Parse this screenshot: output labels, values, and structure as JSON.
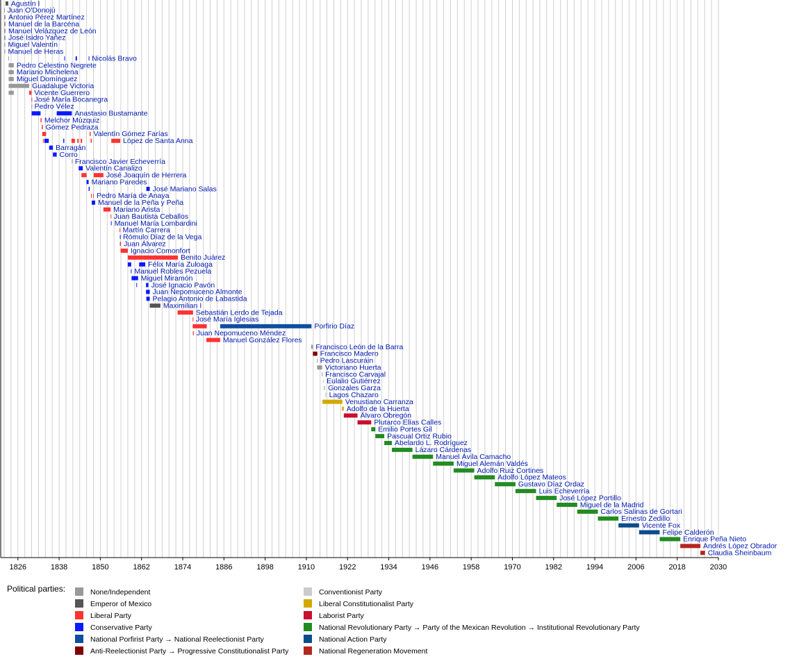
{
  "chart_data": {
    "type": "timeline",
    "xlim": [
      1822,
      2030
    ],
    "xticks": [
      1826,
      1838,
      1850,
      1862,
      1874,
      1886,
      1898,
      1910,
      1922,
      1934,
      1946,
      1958,
      1970,
      1982,
      1994,
      2006,
      2018,
      2030
    ],
    "grid_x": [
      1822,
      1824,
      1826,
      1828,
      1830,
      1832,
      1834,
      1836,
      1838,
      1840,
      1842,
      1844,
      1846,
      1848,
      1850,
      1852,
      1854,
      1856,
      1858,
      1860,
      1862,
      1864,
      1866,
      1868,
      1870,
      1872,
      1874,
      1876,
      1878,
      1880,
      1882,
      1884,
      1886,
      1888,
      1890,
      1892,
      1894,
      1896,
      1898,
      1900,
      1902,
      1904,
      1906,
      1908,
      1910,
      1912,
      1914,
      1916,
      1918,
      1920,
      1922,
      1924,
      1926,
      1928,
      1930,
      1932,
      1934,
      1936,
      1938,
      1940,
      1942,
      1944,
      1946,
      1948,
      1950,
      1952,
      1954,
      1956,
      1958,
      1960,
      1962,
      1964,
      1966,
      1968,
      1970,
      1972,
      1974,
      1976,
      1978,
      1980,
      1982,
      1984,
      1986,
      1988,
      1990,
      1992,
      1994,
      1996,
      1998,
      2000,
      2002,
      2004,
      2006,
      2008,
      2010,
      2012,
      2014,
      2016,
      2018,
      2020,
      2022,
      2024,
      2026,
      2028,
      2030
    ],
    "legend_title": "Political parties:",
    "parties": [
      {
        "name": "None/Independent",
        "color": "#999999"
      },
      {
        "name": "Emperor of Mexico",
        "color": "#555555"
      },
      {
        "name": "Liberal Party",
        "color": "#ff3333"
      },
      {
        "name": "Conservative Party",
        "color": "#0a1aff"
      },
      {
        "name": "National Porfirist Party → National Reelectionist Party",
        "color": "#0d4ea0"
      },
      {
        "name": "Anti-Reelectionist Party → Progressive Constitutionalist Party",
        "color": "#800000"
      },
      {
        "name": "Conventionist Party",
        "color": "#cccccc"
      },
      {
        "name": "Liberal Constitutionalist Party",
        "color": "#d4a800"
      },
      {
        "name": "Laborist Party",
        "color": "#c8102e"
      },
      {
        "name": "National Revolutionary Party → Party of the Mexican Revolution → Institutional Revolutionary Party",
        "color": "#228b22"
      },
      {
        "name": "National Action Party",
        "color": "#0b4c8c"
      },
      {
        "name": "National Regeneration Movement",
        "color": "#b5261e"
      }
    ],
    "rows": [
      {
        "name": "Agustín I",
        "terms": [
          [
            1822.4,
            1823.2,
            1
          ]
        ]
      },
      {
        "name": "Juan O'Donojú",
        "terms": [
          [
            1822.0,
            1822.1,
            0
          ]
        ]
      },
      {
        "name": "Antonio Pérez Martínez",
        "terms": [
          [
            1822.0,
            1822.4,
            0
          ]
        ]
      },
      {
        "name": "Manuel de la Barcéna",
        "terms": [
          [
            1822.0,
            1822.4,
            0
          ]
        ]
      },
      {
        "name": "Manuel Velázquez de León",
        "terms": [
          [
            1822.0,
            1822.4,
            0
          ]
        ]
      },
      {
        "name": "José Isidro Yañez",
        "terms": [
          [
            1822.0,
            1822.4,
            0
          ]
        ]
      },
      {
        "name": "Miguel Valentín",
        "terms": [
          [
            1822.1,
            1822.3,
            0
          ]
        ]
      },
      {
        "name": "Manuel de Heras",
        "terms": [
          [
            1822.1,
            1822.3,
            0
          ]
        ]
      },
      {
        "name": "Nicolás Bravo",
        "terms": [
          [
            1823.2,
            1823.4,
            0
          ],
          [
            1839.5,
            1839.6,
            3
          ],
          [
            1842.8,
            1843.2,
            3
          ],
          [
            1846.6,
            1846.7,
            3
          ]
        ]
      },
      {
        "name": "Pedro Celestino Negrete",
        "terms": [
          [
            1823.3,
            1824.8,
            0
          ]
        ]
      },
      {
        "name": "Mariano Michelena",
        "terms": [
          [
            1823.3,
            1824.8,
            0
          ]
        ]
      },
      {
        "name": "Miguel Domínguez",
        "terms": [
          [
            1823.3,
            1824.8,
            0
          ]
        ]
      },
      {
        "name": "Guadalupe Victoria",
        "terms": [
          [
            1823.3,
            1829.3,
            0
          ]
        ]
      },
      {
        "name": "Vicente Guerrero",
        "terms": [
          [
            1823.3,
            1824.8,
            0
          ],
          [
            1829.3,
            1829.95,
            2
          ]
        ]
      },
      {
        "name": "José María Bocanegra",
        "terms": [
          [
            1829.95,
            1830.0,
            2
          ]
        ]
      },
      {
        "name": "Pedro Vélez",
        "terms": [
          [
            1829.96,
            1830.0,
            0
          ]
        ]
      },
      {
        "name": "Anastasio Bustamante",
        "terms": [
          [
            1830.0,
            1832.6,
            3
          ],
          [
            1837.3,
            1841.7,
            3
          ]
        ]
      },
      {
        "name": "Melchor Múzquiz",
        "terms": [
          [
            1832.6,
            1832.9,
            2
          ]
        ]
      },
      {
        "name": "Gómez Pedraza",
        "terms": [
          [
            1832.95,
            1833.25,
            2
          ]
        ]
      },
      {
        "name": "Valentín Gómez Farías",
        "terms": [
          [
            1833.1,
            1834.2,
            2
          ],
          [
            1846.9,
            1847.2,
            2
          ]
        ]
      },
      {
        "name": "López de Santa Anna",
        "terms": [
          [
            1833.3,
            1833.5,
            2
          ],
          [
            1833.7,
            1835.0,
            3
          ],
          [
            1839.2,
            1839.5,
            3
          ],
          [
            1841.6,
            1842.6,
            2
          ],
          [
            1843.3,
            1843.7,
            2
          ],
          [
            1844.3,
            1844.7,
            2
          ],
          [
            1847.2,
            1847.5,
            2
          ],
          [
            1853.2,
            1855.8,
            2
          ]
        ]
      },
      {
        "name": "Barragán",
        "terms": [
          [
            1835.1,
            1836.2,
            3
          ]
        ]
      },
      {
        "name": "Corro",
        "terms": [
          [
            1836.2,
            1837.3,
            3
          ]
        ]
      },
      {
        "name": "Francisco Javier Echeverría",
        "terms": [
          [
            1841.7,
            1841.8,
            0
          ]
        ]
      },
      {
        "name": "Valentín Canalizo",
        "terms": [
          [
            1843.7,
            1844.9,
            3
          ]
        ]
      },
      {
        "name": "José Joaquín de Herrera",
        "terms": [
          [
            1844.5,
            1846.0,
            2
          ],
          [
            1848.1,
            1850.9,
            2
          ]
        ]
      },
      {
        "name": "Mariano Paredes",
        "terms": [
          [
            1846.0,
            1846.6,
            3
          ]
        ]
      },
      {
        "name": "José Mariano Salas",
        "terms": [
          [
            1846.6,
            1846.9,
            3
          ],
          [
            1863.4,
            1864.4,
            3
          ]
        ]
      },
      {
        "name": "Pedro María de Anaya",
        "terms": [
          [
            1847.3,
            1847.5,
            2
          ],
          [
            1847.9,
            1848.1,
            2
          ]
        ]
      },
      {
        "name": "Manuel de la Peña y Peña",
        "terms": [
          [
            1847.5,
            1848.5,
            3
          ]
        ]
      },
      {
        "name": "Mariano Arista",
        "terms": [
          [
            1850.9,
            1853.0,
            2
          ]
        ]
      },
      {
        "name": "Juan Bautista Ceballos",
        "terms": [
          [
            1853.0,
            1853.1,
            2
          ]
        ]
      },
      {
        "name": "Manuel María Lombardini",
        "terms": [
          [
            1853.1,
            1853.3,
            3
          ]
        ]
      },
      {
        "name": "Martín Carrera",
        "terms": [
          [
            1855.6,
            1855.7,
            2
          ]
        ]
      },
      {
        "name": "Rómulo Díaz de la Vega",
        "terms": [
          [
            1855.7,
            1855.8,
            3
          ]
        ]
      },
      {
        "name": "Juan Álvarez",
        "terms": [
          [
            1855.7,
            1856.0,
            2
          ]
        ]
      },
      {
        "name": "Ignacio Comonfort",
        "terms": [
          [
            1855.9,
            1858.0,
            2
          ]
        ]
      },
      {
        "name": "Benito Juárez",
        "terms": [
          [
            1858.0,
            1872.6,
            2
          ]
        ]
      },
      {
        "name": "Félix María Zuloaga",
        "terms": [
          [
            1858.0,
            1859.0,
            3
          ],
          [
            1861.3,
            1863.1,
            3
          ]
        ]
      },
      {
        "name": "Manuel Robles Pezuela",
        "terms": [
          [
            1858.9,
            1859.1,
            3
          ]
        ]
      },
      {
        "name": "Miguel Miramón",
        "terms": [
          [
            1859.1,
            1861.0,
            3
          ]
        ]
      },
      {
        "name": "José Ignacio Pavón",
        "terms": [
          [
            1860.5,
            1860.7,
            3
          ],
          [
            1863.3,
            1864.0,
            3
          ]
        ]
      },
      {
        "name": "Juan Nepomuceno Almonte",
        "terms": [
          [
            1863.3,
            1864.4,
            3
          ]
        ]
      },
      {
        "name": "Pelagio Antonio de Labastida",
        "terms": [
          [
            1863.4,
            1864.4,
            3
          ]
        ]
      },
      {
        "name": "Maximilian I",
        "terms": [
          [
            1864.4,
            1867.5,
            1
          ]
        ]
      },
      {
        "name": "Sebastián Lerdo de Tejada",
        "terms": [
          [
            1872.5,
            1877.0,
            2
          ]
        ]
      },
      {
        "name": "José María Iglesias",
        "terms": [
          [
            1876.9,
            1877.0,
            2
          ]
        ]
      },
      {
        "name": "Porfirio Díaz",
        "terms": [
          [
            1876.9,
            1881.0,
            2
          ],
          [
            1884.9,
            1911.5,
            4
          ]
        ]
      },
      {
        "name": "Juan Nepomuceno Méndez",
        "terms": [
          [
            1876.95,
            1877.2,
            2
          ]
        ]
      },
      {
        "name": "Manuel González Flores",
        "terms": [
          [
            1880.9,
            1884.9,
            2
          ]
        ]
      },
      {
        "name": "Francisco León de la Barra",
        "terms": [
          [
            1911.4,
            1911.9,
            0
          ]
        ]
      },
      {
        "name": "Francisco Madero",
        "terms": [
          [
            1911.9,
            1913.2,
            5
          ]
        ]
      },
      {
        "name": "Pedro Lascuráin",
        "terms": [
          [
            1913.1,
            1913.2,
            0
          ]
        ]
      },
      {
        "name": "Victoriano Huerta",
        "terms": [
          [
            1913.15,
            1914.6,
            0
          ]
        ]
      },
      {
        "name": "Francisco Carvajal",
        "terms": [
          [
            1914.55,
            1914.7,
            0
          ]
        ]
      },
      {
        "name": "Eulalio Gutiérrez",
        "terms": [
          [
            1914.9,
            1915.1,
            6
          ]
        ]
      },
      {
        "name": "Gonzales Garza",
        "terms": [
          [
            1915.05,
            1915.5,
            6
          ]
        ]
      },
      {
        "name": "Lagos Chazaro",
        "terms": [
          [
            1915.5,
            1915.8,
            6
          ]
        ]
      },
      {
        "name": "Venustiano Carranza",
        "terms": [
          [
            1914.7,
            1920.5,
            7
          ]
        ]
      },
      {
        "name": "Adolfo de la Huerta",
        "terms": [
          [
            1920.4,
            1920.9,
            7
          ]
        ]
      },
      {
        "name": "Álvaro Obregón",
        "terms": [
          [
            1920.9,
            1924.9,
            8
          ]
        ]
      },
      {
        "name": "Plutarco Elías Calles",
        "terms": [
          [
            1924.9,
            1928.9,
            8
          ]
        ]
      },
      {
        "name": "Emilio Portes Gil",
        "terms": [
          [
            1928.9,
            1930.1,
            9
          ]
        ]
      },
      {
        "name": "Pascual Ortiz Rubio",
        "terms": [
          [
            1930.1,
            1932.7,
            9
          ]
        ]
      },
      {
        "name": "Abelardo L. Rodríguez",
        "terms": [
          [
            1932.7,
            1934.9,
            9
          ]
        ]
      },
      {
        "name": "Lázaro Cárdenas",
        "terms": [
          [
            1934.9,
            1940.9,
            9
          ]
        ]
      },
      {
        "name": "Manuel Ávila Camacho",
        "terms": [
          [
            1940.9,
            1946.9,
            9
          ]
        ]
      },
      {
        "name": "Miguel Alemán Valdés",
        "terms": [
          [
            1946.9,
            1952.9,
            9
          ]
        ]
      },
      {
        "name": "Adolfo Ruiz Cortines",
        "terms": [
          [
            1952.9,
            1958.9,
            9
          ]
        ]
      },
      {
        "name": "Adolfo López Mateos",
        "terms": [
          [
            1958.9,
            1964.9,
            9
          ]
        ]
      },
      {
        "name": "Gustavo Díaz Ordaz",
        "terms": [
          [
            1964.9,
            1970.9,
            9
          ]
        ]
      },
      {
        "name": "Luis Echeverría",
        "terms": [
          [
            1970.9,
            1976.9,
            9
          ]
        ]
      },
      {
        "name": "José López Portillo",
        "terms": [
          [
            1976.9,
            1982.9,
            9
          ]
        ]
      },
      {
        "name": "Miguel de la Madrid",
        "terms": [
          [
            1982.9,
            1988.9,
            9
          ]
        ]
      },
      {
        "name": "Carlos Salinas de Gortari",
        "terms": [
          [
            1988.9,
            1994.9,
            9
          ]
        ]
      },
      {
        "name": "Ernesto Zedillo",
        "terms": [
          [
            1994.9,
            2000.9,
            9
          ]
        ]
      },
      {
        "name": "Vicente Fox",
        "terms": [
          [
            2000.9,
            2006.9,
            10
          ]
        ]
      },
      {
        "name": "Felipe Calderón",
        "terms": [
          [
            2006.9,
            2012.9,
            10
          ]
        ]
      },
      {
        "name": "Enrique Peña Nieto",
        "terms": [
          [
            2012.9,
            2018.9,
            9
          ]
        ]
      },
      {
        "name": "Andrés López Obrador",
        "terms": [
          [
            2018.9,
            2024.75,
            11
          ]
        ]
      },
      {
        "name": "Claudia Sheinbaum",
        "terms": [
          [
            2024.75,
            2026.1,
            11
          ]
        ]
      }
    ]
  }
}
